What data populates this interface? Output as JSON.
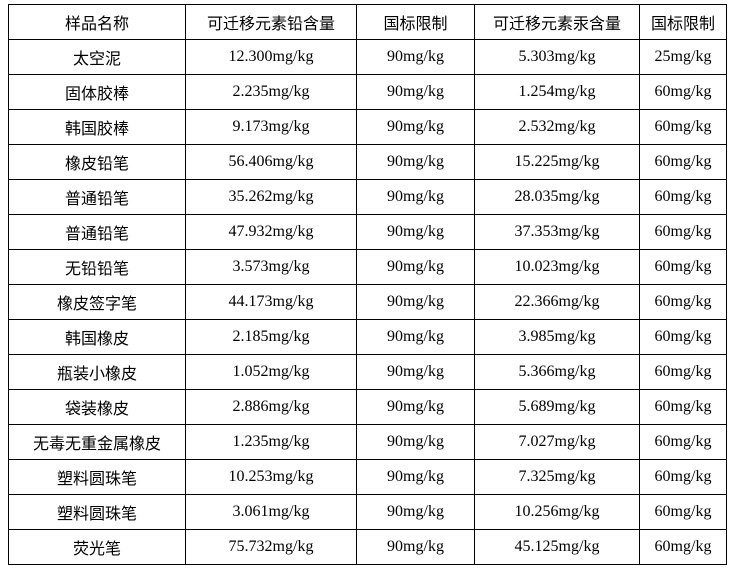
{
  "headers": [
    "样品名称",
    "可迁移元素铅含量",
    "国标限制",
    "可迁移元素汞含量",
    "国标限制"
  ],
  "rows": [
    [
      "太空泥",
      "12.300mg/kg",
      "90mg/kg",
      "5.303mg/kg",
      "25mg/kg"
    ],
    [
      "固体胶棒",
      "2.235mg/kg",
      "90mg/kg",
      "1.254mg/kg",
      "60mg/kg"
    ],
    [
      "韩国胶棒",
      "9.173mg/kg",
      "90mg/kg",
      "2.532mg/kg",
      "60mg/kg"
    ],
    [
      "橡皮铅笔",
      "56.406mg/kg",
      "90mg/kg",
      "15.225mg/kg",
      "60mg/kg"
    ],
    [
      "普通铅笔",
      "35.262mg/kg",
      "90mg/kg",
      "28.035mg/kg",
      "60mg/kg"
    ],
    [
      "普通铅笔",
      "47.932mg/kg",
      "90mg/kg",
      "37.353mg/kg",
      "60mg/kg"
    ],
    [
      "无铅铅笔",
      "3.573mg/kg",
      "90mg/kg",
      "10.023mg/kg",
      "60mg/kg"
    ],
    [
      "橡皮签字笔",
      "44.173mg/kg",
      "90mg/kg",
      "22.366mg/kg",
      "60mg/kg"
    ],
    [
      "韩国橡皮",
      "2.185mg/kg",
      "90mg/kg",
      "3.985mg/kg",
      "60mg/kg"
    ],
    [
      "瓶装小橡皮",
      "1.052mg/kg",
      "90mg/kg",
      "5.366mg/kg",
      "60mg/kg"
    ],
    [
      "袋装橡皮",
      "2.886mg/kg",
      "90mg/kg",
      "5.689mg/kg",
      "60mg/kg"
    ],
    [
      "无毒无重金属橡皮",
      "1.235mg/kg",
      "90mg/kg",
      "7.027mg/kg",
      "60mg/kg"
    ],
    [
      "塑料圆珠笔",
      "10.253mg/kg",
      "90mg/kg",
      "7.325mg/kg",
      "60mg/kg"
    ],
    [
      "塑料圆珠笔",
      "3.061mg/kg",
      "90mg/kg",
      "10.256mg/kg",
      "60mg/kg"
    ],
    [
      "荧光笔",
      "75.732mg/kg",
      "90mg/kg",
      "45.125mg/kg",
      "60mg/kg"
    ]
  ]
}
